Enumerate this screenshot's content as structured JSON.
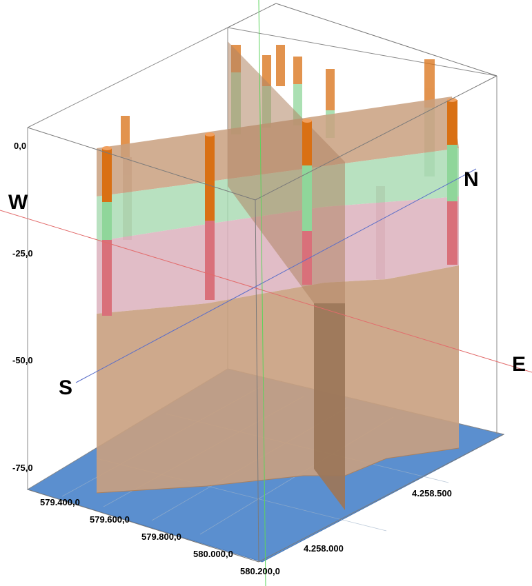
{
  "view": {
    "elevation_ticks": [
      "0,0",
      "-25,0",
      "-50,0",
      "-75,0"
    ],
    "easting_ticks": [
      "579.400,0",
      "579.600,0",
      "579.800,0",
      "580.000,0",
      "580.200,0"
    ],
    "northing_ticks": [
      "4.258.000",
      "4.258.500"
    ],
    "compass": {
      "west": "W",
      "north": "N",
      "east": "E",
      "south": "S"
    }
  },
  "colors": {
    "base_surface": "#5b8fcf",
    "brown_layer": "#c9a07f",
    "green_layer": "#a6d9b0",
    "pink_layer": "#dcb2bd",
    "pipe_orange": "#d97014",
    "pipe_green": "#8fd69a",
    "pipe_red": "#d9707a",
    "axis_red": "#e26b6b",
    "axis_blue": "#5a6ec9",
    "axis_green": "#5cd35c",
    "frame": "#7a7a7a"
  }
}
